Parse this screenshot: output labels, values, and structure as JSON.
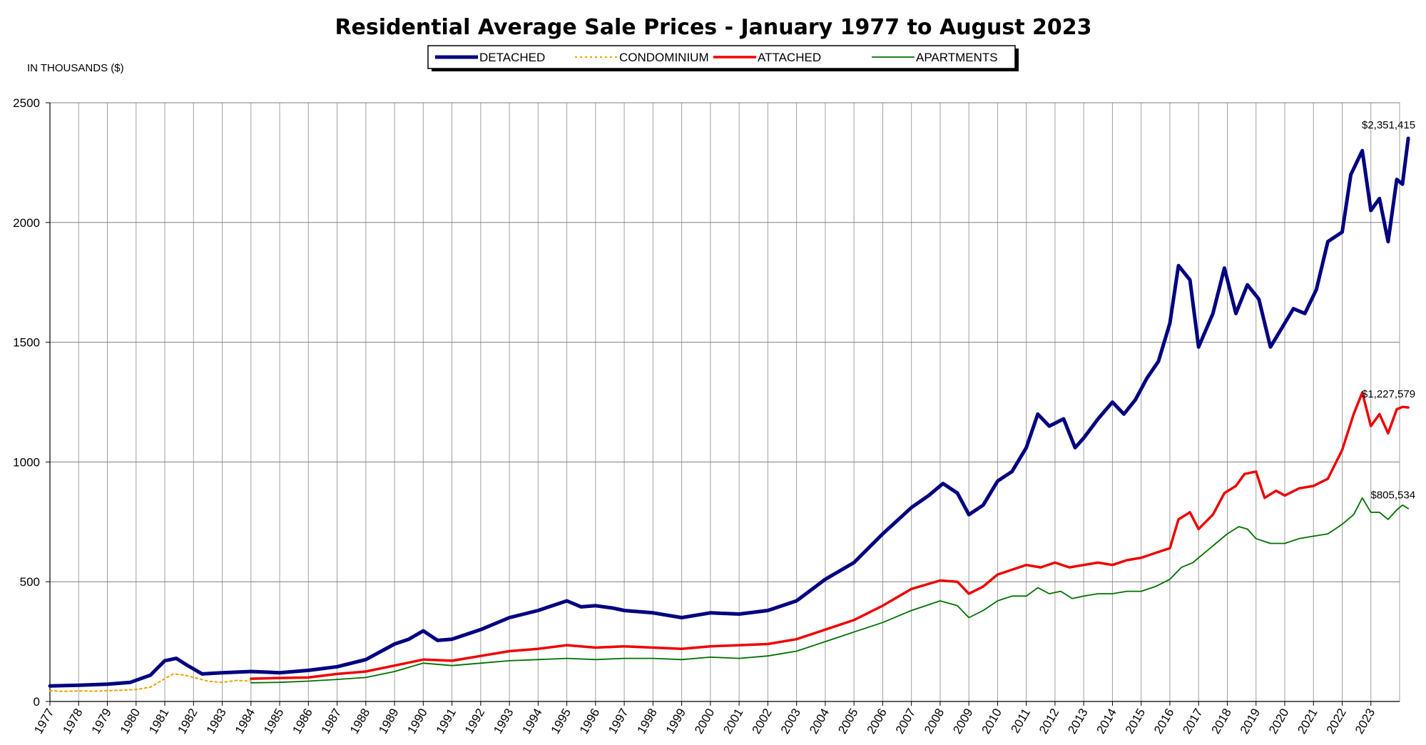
{
  "chart_data": {
    "type": "line",
    "title": "Residential Average Sale Prices  -  January 1977 to August 2023",
    "ylabel": "IN THOUSANDS ($)",
    "xlabel": "",
    "ylim": [
      0,
      2500
    ],
    "yticks": [
      0,
      500,
      1000,
      1500,
      2000,
      2500
    ],
    "xlim": [
      1977,
      2024
    ],
    "xticks": [
      "1977",
      "1978",
      "1979",
      "1980",
      "1981",
      "1982",
      "1983",
      "1984",
      "1985",
      "1986",
      "1987",
      "1988",
      "1989",
      "1990",
      "1991",
      "1992",
      "1993",
      "1994",
      "1995",
      "1996",
      "1997",
      "1998",
      "1999",
      "2000",
      "2001",
      "2002",
      "2003",
      "2004",
      "2005",
      "2006",
      "2007",
      "2008",
      "2009",
      "2010",
      "2011",
      "2012",
      "2013",
      "2014",
      "2015",
      "2016",
      "2017",
      "2018",
      "2019",
      "2020",
      "2021",
      "2022",
      "2023"
    ],
    "grid": true,
    "legend_position": "top-center",
    "series": [
      {
        "name": "DETACHED",
        "color": "#000080",
        "style": "thick-solid",
        "points": [
          [
            1977.0,
            65
          ],
          [
            1978.0,
            68
          ],
          [
            1979.0,
            72
          ],
          [
            1979.8,
            80
          ],
          [
            1980.5,
            110
          ],
          [
            1981.0,
            170
          ],
          [
            1981.4,
            180
          ],
          [
            1981.8,
            150
          ],
          [
            1982.3,
            115
          ],
          [
            1983.0,
            120
          ],
          [
            1984.0,
            125
          ],
          [
            1985.0,
            120
          ],
          [
            1986.0,
            130
          ],
          [
            1987.0,
            145
          ],
          [
            1988.0,
            175
          ],
          [
            1989.0,
            240
          ],
          [
            1989.5,
            260
          ],
          [
            1990.0,
            295
          ],
          [
            1990.5,
            255
          ],
          [
            1991.0,
            260
          ],
          [
            1992.0,
            300
          ],
          [
            1993.0,
            350
          ],
          [
            1994.0,
            380
          ],
          [
            1995.0,
            420
          ],
          [
            1995.5,
            395
          ],
          [
            1996.0,
            400
          ],
          [
            1996.6,
            390
          ],
          [
            1997.0,
            380
          ],
          [
            1998.0,
            370
          ],
          [
            1999.0,
            350
          ],
          [
            2000.0,
            370
          ],
          [
            2001.0,
            365
          ],
          [
            2002.0,
            380
          ],
          [
            2003.0,
            420
          ],
          [
            2004.0,
            510
          ],
          [
            2005.0,
            580
          ],
          [
            2006.0,
            700
          ],
          [
            2007.0,
            810
          ],
          [
            2007.6,
            860
          ],
          [
            2008.1,
            910
          ],
          [
            2008.6,
            870
          ],
          [
            2009.0,
            780
          ],
          [
            2009.5,
            820
          ],
          [
            2010.0,
            920
          ],
          [
            2010.5,
            960
          ],
          [
            2011.0,
            1060
          ],
          [
            2011.4,
            1200
          ],
          [
            2011.8,
            1150
          ],
          [
            2012.3,
            1180
          ],
          [
            2012.7,
            1060
          ],
          [
            2013.0,
            1100
          ],
          [
            2013.5,
            1180
          ],
          [
            2014.0,
            1250
          ],
          [
            2014.4,
            1200
          ],
          [
            2014.8,
            1260
          ],
          [
            2015.2,
            1350
          ],
          [
            2015.6,
            1420
          ],
          [
            2016.0,
            1580
          ],
          [
            2016.3,
            1820
          ],
          [
            2016.7,
            1760
          ],
          [
            2017.0,
            1480
          ],
          [
            2017.5,
            1620
          ],
          [
            2017.9,
            1810
          ],
          [
            2018.3,
            1620
          ],
          [
            2018.7,
            1740
          ],
          [
            2019.1,
            1680
          ],
          [
            2019.5,
            1480
          ],
          [
            2019.9,
            1560
          ],
          [
            2020.3,
            1640
          ],
          [
            2020.7,
            1620
          ],
          [
            2021.1,
            1720
          ],
          [
            2021.5,
            1920
          ],
          [
            2022.0,
            1960
          ],
          [
            2022.3,
            2200
          ],
          [
            2022.7,
            2300
          ],
          [
            2023.0,
            2050
          ],
          [
            2023.3,
            2100
          ],
          [
            2023.6,
            1920
          ],
          [
            2023.9,
            2180
          ],
          [
            2024.1,
            2160
          ],
          [
            2024.3,
            2351.415
          ]
        ]
      },
      {
        "name": "CONDOMINIUM",
        "color": "#f0a000",
        "style": "dotted",
        "points": [
          [
            1977.0,
            45
          ],
          [
            1977.5,
            42
          ],
          [
            1978.0,
            44
          ],
          [
            1978.5,
            43
          ],
          [
            1979.0,
            45
          ],
          [
            1979.5,
            47
          ],
          [
            1980.0,
            50
          ],
          [
            1980.5,
            60
          ],
          [
            1981.0,
            95
          ],
          [
            1981.3,
            115
          ],
          [
            1981.7,
            110
          ],
          [
            1982.0,
            100
          ],
          [
            1982.5,
            85
          ],
          [
            1983.0,
            80
          ],
          [
            1983.5,
            88
          ],
          [
            1984.0,
            85
          ]
        ]
      },
      {
        "name": "ATTACHED",
        "color": "#ee0000",
        "style": "solid",
        "points": [
          [
            1984.0,
            95
          ],
          [
            1985.0,
            98
          ],
          [
            1986.0,
            100
          ],
          [
            1987.0,
            115
          ],
          [
            1988.0,
            125
          ],
          [
            1989.0,
            150
          ],
          [
            1990.0,
            175
          ],
          [
            1991.0,
            170
          ],
          [
            1992.0,
            190
          ],
          [
            1993.0,
            210
          ],
          [
            1994.0,
            220
          ],
          [
            1995.0,
            235
          ],
          [
            1996.0,
            225
          ],
          [
            1997.0,
            230
          ],
          [
            1998.0,
            225
          ],
          [
            1999.0,
            220
          ],
          [
            2000.0,
            230
          ],
          [
            2001.0,
            235
          ],
          [
            2002.0,
            240
          ],
          [
            2003.0,
            260
          ],
          [
            2004.0,
            300
          ],
          [
            2005.0,
            340
          ],
          [
            2006.0,
            400
          ],
          [
            2007.0,
            470
          ],
          [
            2008.0,
            505
          ],
          [
            2008.6,
            500
          ],
          [
            2009.0,
            450
          ],
          [
            2009.5,
            480
          ],
          [
            2010.0,
            530
          ],
          [
            2010.5,
            550
          ],
          [
            2011.0,
            570
          ],
          [
            2011.5,
            560
          ],
          [
            2012.0,
            580
          ],
          [
            2012.5,
            560
          ],
          [
            2013.0,
            570
          ],
          [
            2013.5,
            580
          ],
          [
            2014.0,
            570
          ],
          [
            2014.5,
            590
          ],
          [
            2015.0,
            600
          ],
          [
            2015.5,
            620
          ],
          [
            2016.0,
            640
          ],
          [
            2016.3,
            760
          ],
          [
            2016.7,
            790
          ],
          [
            2017.0,
            720
          ],
          [
            2017.5,
            780
          ],
          [
            2017.9,
            870
          ],
          [
            2018.3,
            900
          ],
          [
            2018.6,
            950
          ],
          [
            2019.0,
            960
          ],
          [
            2019.3,
            850
          ],
          [
            2019.7,
            880
          ],
          [
            2020.0,
            860
          ],
          [
            2020.5,
            890
          ],
          [
            2021.0,
            900
          ],
          [
            2021.5,
            930
          ],
          [
            2022.0,
            1050
          ],
          [
            2022.4,
            1200
          ],
          [
            2022.7,
            1290
          ],
          [
            2023.0,
            1150
          ],
          [
            2023.3,
            1200
          ],
          [
            2023.6,
            1120
          ],
          [
            2023.9,
            1220
          ],
          [
            2024.1,
            1230
          ],
          [
            2024.3,
            1227.579
          ]
        ]
      },
      {
        "name": "APARTMENTS",
        "color": "#007000",
        "style": "thin-solid",
        "points": [
          [
            1984.0,
            78
          ],
          [
            1985.0,
            80
          ],
          [
            1986.0,
            85
          ],
          [
            1987.0,
            92
          ],
          [
            1988.0,
            100
          ],
          [
            1989.0,
            125
          ],
          [
            1990.0,
            160
          ],
          [
            1991.0,
            150
          ],
          [
            1992.0,
            160
          ],
          [
            1993.0,
            170
          ],
          [
            1994.0,
            175
          ],
          [
            1995.0,
            180
          ],
          [
            1996.0,
            175
          ],
          [
            1997.0,
            180
          ],
          [
            1998.0,
            180
          ],
          [
            1999.0,
            175
          ],
          [
            2000.0,
            185
          ],
          [
            2001.0,
            180
          ],
          [
            2002.0,
            190
          ],
          [
            2003.0,
            210
          ],
          [
            2004.0,
            250
          ],
          [
            2005.0,
            290
          ],
          [
            2006.0,
            330
          ],
          [
            2007.0,
            380
          ],
          [
            2008.0,
            420
          ],
          [
            2008.6,
            400
          ],
          [
            2009.0,
            350
          ],
          [
            2009.5,
            380
          ],
          [
            2010.0,
            420
          ],
          [
            2010.5,
            440
          ],
          [
            2011.0,
            440
          ],
          [
            2011.4,
            475
          ],
          [
            2011.8,
            450
          ],
          [
            2012.2,
            460
          ],
          [
            2012.6,
            430
          ],
          [
            2013.0,
            440
          ],
          [
            2013.5,
            450
          ],
          [
            2014.0,
            450
          ],
          [
            2014.5,
            460
          ],
          [
            2015.0,
            460
          ],
          [
            2015.5,
            480
          ],
          [
            2016.0,
            510
          ],
          [
            2016.4,
            560
          ],
          [
            2016.8,
            580
          ],
          [
            2017.2,
            620
          ],
          [
            2017.6,
            660
          ],
          [
            2018.0,
            700
          ],
          [
            2018.4,
            730
          ],
          [
            2018.7,
            720
          ],
          [
            2019.0,
            680
          ],
          [
            2019.5,
            660
          ],
          [
            2020.0,
            660
          ],
          [
            2020.5,
            680
          ],
          [
            2021.0,
            690
          ],
          [
            2021.5,
            700
          ],
          [
            2022.0,
            740
          ],
          [
            2022.4,
            780
          ],
          [
            2022.7,
            850
          ],
          [
            2023.0,
            790
          ],
          [
            2023.3,
            790
          ],
          [
            2023.6,
            760
          ],
          [
            2023.9,
            800
          ],
          [
            2024.1,
            820
          ],
          [
            2024.3,
            805.534
          ]
        ]
      }
    ],
    "annotations": [
      {
        "text": "$2,351,415",
        "x": 2024.3,
        "y": 2351.415,
        "series": "DETACHED"
      },
      {
        "text": "$1,227,579",
        "x": 2024.3,
        "y": 1227.579,
        "series": "ATTACHED"
      },
      {
        "text": "$805,534",
        "x": 2024.3,
        "y": 805.534,
        "series": "APARTMENTS"
      }
    ]
  }
}
